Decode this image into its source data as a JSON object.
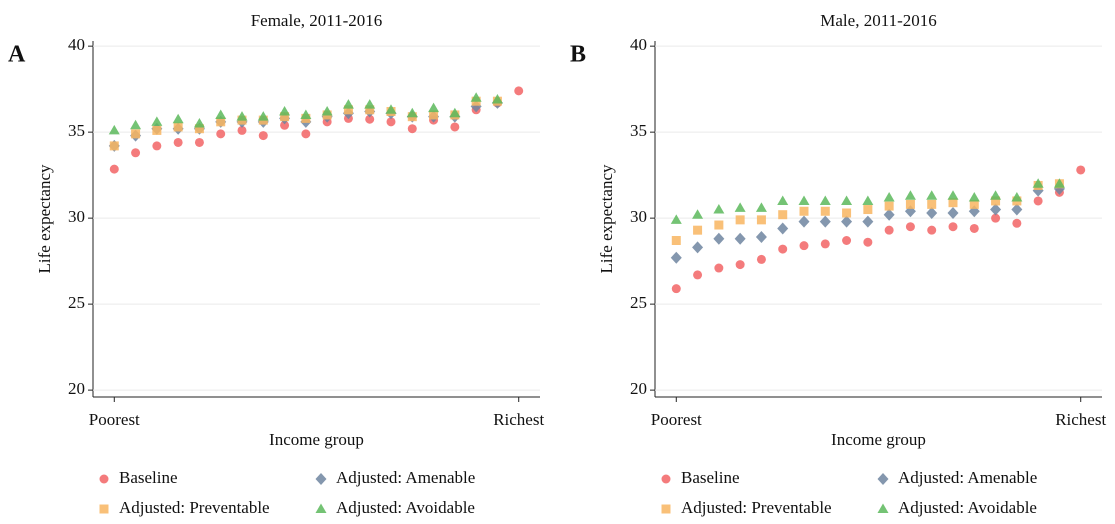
{
  "chart_data": [
    {
      "type": "scatter",
      "panel": "A",
      "title": "Female, 2011-2016",
      "xlabel": "Income group",
      "ylabel": "Life expectancy",
      "x": [
        1,
        2,
        3,
        4,
        5,
        6,
        7,
        8,
        9,
        10,
        11,
        12,
        13,
        14,
        15,
        16,
        17,
        18,
        19,
        20
      ],
      "xlim": [
        0,
        21
      ],
      "xticks": [
        {
          "value": 1,
          "label": "Poorest"
        },
        {
          "value": 20,
          "label": "Richest"
        }
      ],
      "ylim": [
        19.6,
        40.3
      ],
      "yticks": [
        20,
        25,
        30,
        35,
        40
      ],
      "grid": true,
      "series": [
        {
          "name": "Baseline",
          "color": "#f26465",
          "marker": "circle",
          "values": [
            32.85,
            33.8,
            34.2,
            34.4,
            34.4,
            34.9,
            35.1,
            34.8,
            35.4,
            34.9,
            35.6,
            35.8,
            35.75,
            35.6,
            35.2,
            35.7,
            35.3,
            36.3,
            36.7,
            37.4
          ]
        },
        {
          "name": "Adjusted: Amenable",
          "color": "#6f85a0",
          "marker": "diamond",
          "values": [
            34.2,
            34.8,
            35.2,
            35.2,
            35.2,
            35.6,
            35.6,
            35.6,
            35.8,
            35.6,
            35.9,
            36.1,
            36.2,
            36.1,
            35.9,
            35.9,
            35.9,
            36.5,
            36.7,
            null
          ]
        },
        {
          "name": "Adjusted: Preventable",
          "color": "#f8b560",
          "marker": "square",
          "values": [
            34.2,
            34.9,
            35.1,
            35.3,
            35.2,
            35.6,
            35.7,
            35.7,
            35.9,
            35.8,
            36.0,
            36.3,
            36.3,
            36.2,
            35.9,
            36.0,
            36.0,
            36.8,
            36.8,
            null
          ]
        },
        {
          "name": "Adjusted: Avoidable",
          "color": "#5cb85c",
          "marker": "triangle",
          "values": [
            35.1,
            35.4,
            35.6,
            35.75,
            35.5,
            36.0,
            35.9,
            35.9,
            36.2,
            36.0,
            36.2,
            36.6,
            36.6,
            36.3,
            36.1,
            36.4,
            36.1,
            37.0,
            36.9,
            null
          ]
        }
      ]
    },
    {
      "type": "scatter",
      "panel": "B",
      "title": "Male, 2011-2016",
      "xlabel": "Income group",
      "ylabel": "Life expectancy",
      "x": [
        1,
        2,
        3,
        4,
        5,
        6,
        7,
        8,
        9,
        10,
        11,
        12,
        13,
        14,
        15,
        16,
        17,
        18,
        19,
        20
      ],
      "xlim": [
        0,
        21
      ],
      "xticks": [
        {
          "value": 1,
          "label": "Poorest"
        },
        {
          "value": 20,
          "label": "Richest"
        }
      ],
      "ylim": [
        19.6,
        40.3
      ],
      "yticks": [
        20,
        25,
        30,
        35,
        40
      ],
      "grid": true,
      "series": [
        {
          "name": "Baseline",
          "color": "#f26465",
          "marker": "circle",
          "values": [
            25.9,
            26.7,
            27.1,
            27.3,
            27.6,
            28.2,
            28.4,
            28.5,
            28.7,
            28.6,
            29.3,
            29.5,
            29.3,
            29.5,
            29.4,
            30.0,
            29.7,
            31.0,
            31.5,
            32.8
          ]
        },
        {
          "name": "Adjusted: Amenable",
          "color": "#6f85a0",
          "marker": "diamond",
          "values": [
            27.7,
            28.3,
            28.8,
            28.8,
            28.9,
            29.4,
            29.8,
            29.8,
            29.8,
            29.8,
            30.2,
            30.4,
            30.3,
            30.3,
            30.4,
            30.5,
            30.5,
            31.6,
            31.7,
            null
          ]
        },
        {
          "name": "Adjusted: Preventable",
          "color": "#f8b560",
          "marker": "square",
          "values": [
            28.7,
            29.3,
            29.6,
            29.9,
            29.9,
            30.2,
            30.4,
            30.4,
            30.3,
            30.5,
            30.7,
            30.8,
            30.8,
            30.9,
            30.8,
            31.0,
            31.0,
            31.9,
            32.0,
            null
          ]
        },
        {
          "name": "Adjusted: Avoidable",
          "color": "#5cb85c",
          "marker": "triangle",
          "values": [
            29.9,
            30.2,
            30.5,
            30.6,
            30.6,
            31.0,
            31.0,
            31.0,
            31.0,
            31.0,
            31.2,
            31.3,
            31.3,
            31.3,
            31.2,
            31.3,
            31.2,
            32.0,
            32.0,
            null
          ]
        }
      ]
    }
  ]
}
